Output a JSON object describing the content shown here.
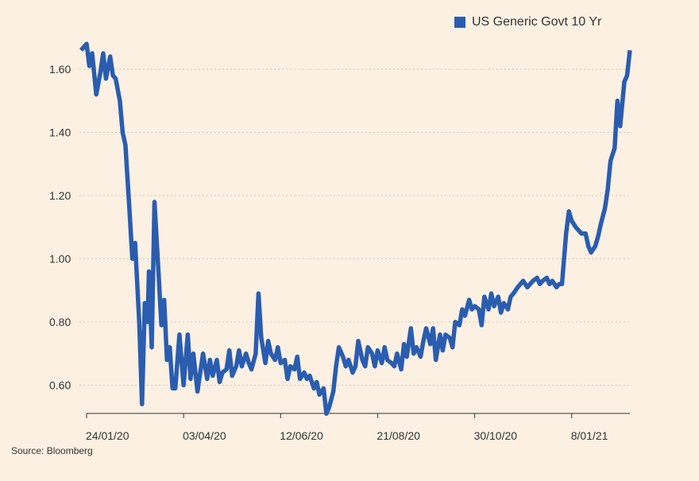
{
  "legend": {
    "label": "US Generic Govt 10 Yr"
  },
  "source": "Source: Bloomberg",
  "colors": {
    "series": "#2a5db0",
    "background": "#fbf0e2",
    "grid": "#cfc6ba",
    "axis": "#333333"
  },
  "chart_data": {
    "type": "line",
    "title": "",
    "xlabel": "",
    "ylabel": "",
    "legend_position": "top-right",
    "grid": true,
    "ylim": [
      0.5,
      1.7
    ],
    "yticks": [
      0.6,
      0.8,
      1.0,
      1.2,
      1.4,
      1.6
    ],
    "ytick_labels": [
      "0.60",
      "0.80",
      "1.00",
      "1.20",
      "1.40",
      "1.60"
    ],
    "xlim": [
      "2020-01-24",
      "2021-02-19"
    ],
    "xticks": [
      "2020-01-24",
      "2020-04-03",
      "2020-06-12",
      "2020-08-21",
      "2020-10-30",
      "2021-01-08"
    ],
    "xtick_labels": [
      "24/01/20",
      "03/04/20",
      "12/06/20",
      "21/08/20",
      "30/10/20",
      "8/01/21"
    ],
    "series": [
      {
        "name": "US Generic Govt 10 Yr",
        "x": [
          "2020-01-20",
          "2020-01-24",
          "2020-01-26",
          "2020-01-28",
          "2020-01-31",
          "2020-02-03",
          "2020-02-05",
          "2020-02-07",
          "2020-02-10",
          "2020-02-12",
          "2020-02-14",
          "2020-02-17",
          "2020-02-19",
          "2020-02-21",
          "2020-02-24",
          "2020-02-26",
          "2020-02-28",
          "2020-03-02",
          "2020-03-04",
          "2020-03-06",
          "2020-03-08",
          "2020-03-09",
          "2020-03-11",
          "2020-03-13",
          "2020-03-16",
          "2020-03-18",
          "2020-03-20",
          "2020-03-22",
          "2020-03-24",
          "2020-03-26",
          "2020-03-28",
          "2020-03-31",
          "2020-04-03",
          "2020-04-06",
          "2020-04-08",
          "2020-04-10",
          "2020-04-13",
          "2020-04-15",
          "2020-04-17",
          "2020-04-20",
          "2020-04-22",
          "2020-04-24",
          "2020-04-27",
          "2020-04-29",
          "2020-05-01",
          "2020-05-04",
          "2020-05-06",
          "2020-05-08",
          "2020-05-11",
          "2020-05-13",
          "2020-05-15",
          "2020-05-18",
          "2020-05-20",
          "2020-05-22",
          "2020-05-25",
          "2020-05-27",
          "2020-05-29",
          "2020-06-01",
          "2020-06-03",
          "2020-06-05",
          "2020-06-08",
          "2020-06-10",
          "2020-06-12",
          "2020-06-15",
          "2020-06-17",
          "2020-06-19",
          "2020-06-22",
          "2020-06-24",
          "2020-06-26",
          "2020-06-29",
          "2020-07-01",
          "2020-07-03",
          "2020-07-06",
          "2020-07-08",
          "2020-07-10",
          "2020-07-13",
          "2020-07-15",
          "2020-07-17",
          "2020-07-20",
          "2020-07-22",
          "2020-07-24",
          "2020-07-27",
          "2020-07-29",
          "2020-07-31",
          "2020-08-03",
          "2020-08-05",
          "2020-08-07",
          "2020-08-10",
          "2020-08-12",
          "2020-08-14",
          "2020-08-17",
          "2020-08-19",
          "2020-08-21",
          "2020-08-24",
          "2020-08-26",
          "2020-08-28",
          "2020-08-31",
          "2020-09-02",
          "2020-09-04",
          "2020-09-07",
          "2020-09-09",
          "2020-09-11",
          "2020-09-14",
          "2020-09-16",
          "2020-09-18",
          "2020-09-21",
          "2020-09-23",
          "2020-09-25",
          "2020-09-28",
          "2020-09-30",
          "2020-10-02",
          "2020-10-05",
          "2020-10-07",
          "2020-10-09",
          "2020-10-12",
          "2020-10-14",
          "2020-10-16",
          "2020-10-19",
          "2020-10-21",
          "2020-10-23",
          "2020-10-26",
          "2020-10-28",
          "2020-10-30",
          "2020-11-02",
          "2020-11-04",
          "2020-11-06",
          "2020-11-09",
          "2020-11-11",
          "2020-11-13",
          "2020-11-16",
          "2020-11-18",
          "2020-11-20",
          "2020-11-23",
          "2020-11-25",
          "2020-11-27",
          "2020-11-30",
          "2020-12-02",
          "2020-12-04",
          "2020-12-07",
          "2020-12-09",
          "2020-12-11",
          "2020-12-14",
          "2020-12-16",
          "2020-12-18",
          "2020-12-21",
          "2020-12-23",
          "2020-12-25",
          "2020-12-28",
          "2020-12-30",
          "2021-01-01",
          "2021-01-04",
          "2021-01-06",
          "2021-01-08",
          "2021-01-11",
          "2021-01-13",
          "2021-01-15",
          "2021-01-18",
          "2021-01-20",
          "2021-01-22",
          "2021-01-25",
          "2021-01-27",
          "2021-01-29",
          "2021-02-01",
          "2021-02-03",
          "2021-02-05",
          "2021-02-08",
          "2021-02-10",
          "2021-02-12",
          "2021-02-15",
          "2021-02-17",
          "2021-02-19"
        ],
        "values": [
          1.66,
          1.68,
          1.61,
          1.65,
          1.52,
          1.59,
          1.65,
          1.57,
          1.64,
          1.58,
          1.57,
          1.5,
          1.4,
          1.36,
          1.15,
          1.0,
          1.05,
          0.8,
          0.54,
          0.86,
          0.8,
          0.96,
          0.72,
          1.18,
          0.95,
          0.79,
          0.87,
          0.68,
          0.72,
          0.59,
          0.59,
          0.76,
          0.6,
          0.76,
          0.62,
          0.7,
          0.58,
          0.64,
          0.7,
          0.62,
          0.68,
          0.63,
          0.68,
          0.61,
          0.64,
          0.65,
          0.71,
          0.63,
          0.66,
          0.71,
          0.66,
          0.7,
          0.67,
          0.65,
          0.7,
          0.89,
          0.75,
          0.67,
          0.74,
          0.7,
          0.68,
          0.72,
          0.67,
          0.68,
          0.62,
          0.66,
          0.65,
          0.69,
          0.62,
          0.64,
          0.62,
          0.63,
          0.59,
          0.61,
          0.57,
          0.59,
          0.51,
          0.53,
          0.58,
          0.66,
          0.72,
          0.69,
          0.66,
          0.68,
          0.64,
          0.66,
          0.74,
          0.68,
          0.66,
          0.72,
          0.7,
          0.66,
          0.71,
          0.67,
          0.72,
          0.68,
          0.67,
          0.66,
          0.7,
          0.65,
          0.73,
          0.69,
          0.78,
          0.7,
          0.72,
          0.69,
          0.74,
          0.78,
          0.73,
          0.78,
          0.68,
          0.76,
          0.71,
          0.76,
          0.75,
          0.72,
          0.8,
          0.79,
          0.84,
          0.82,
          0.87,
          0.84,
          0.85,
          0.84,
          0.79,
          0.88,
          0.84,
          0.89,
          0.85,
          0.88,
          0.83,
          0.86,
          0.84,
          0.88,
          0.89,
          0.91,
          0.92,
          0.93,
          0.91,
          0.92,
          0.93,
          0.94,
          0.92,
          0.93,
          0.94,
          0.92,
          0.93,
          0.91,
          0.92,
          0.92,
          1.08,
          1.15,
          1.12,
          1.1,
          1.09,
          1.08,
          1.08,
          1.04,
          1.02,
          1.04,
          1.07,
          1.11,
          1.16,
          1.22,
          1.31,
          1.35,
          1.5,
          1.42,
          1.56,
          1.58,
          1.66
        ]
      }
    ]
  }
}
